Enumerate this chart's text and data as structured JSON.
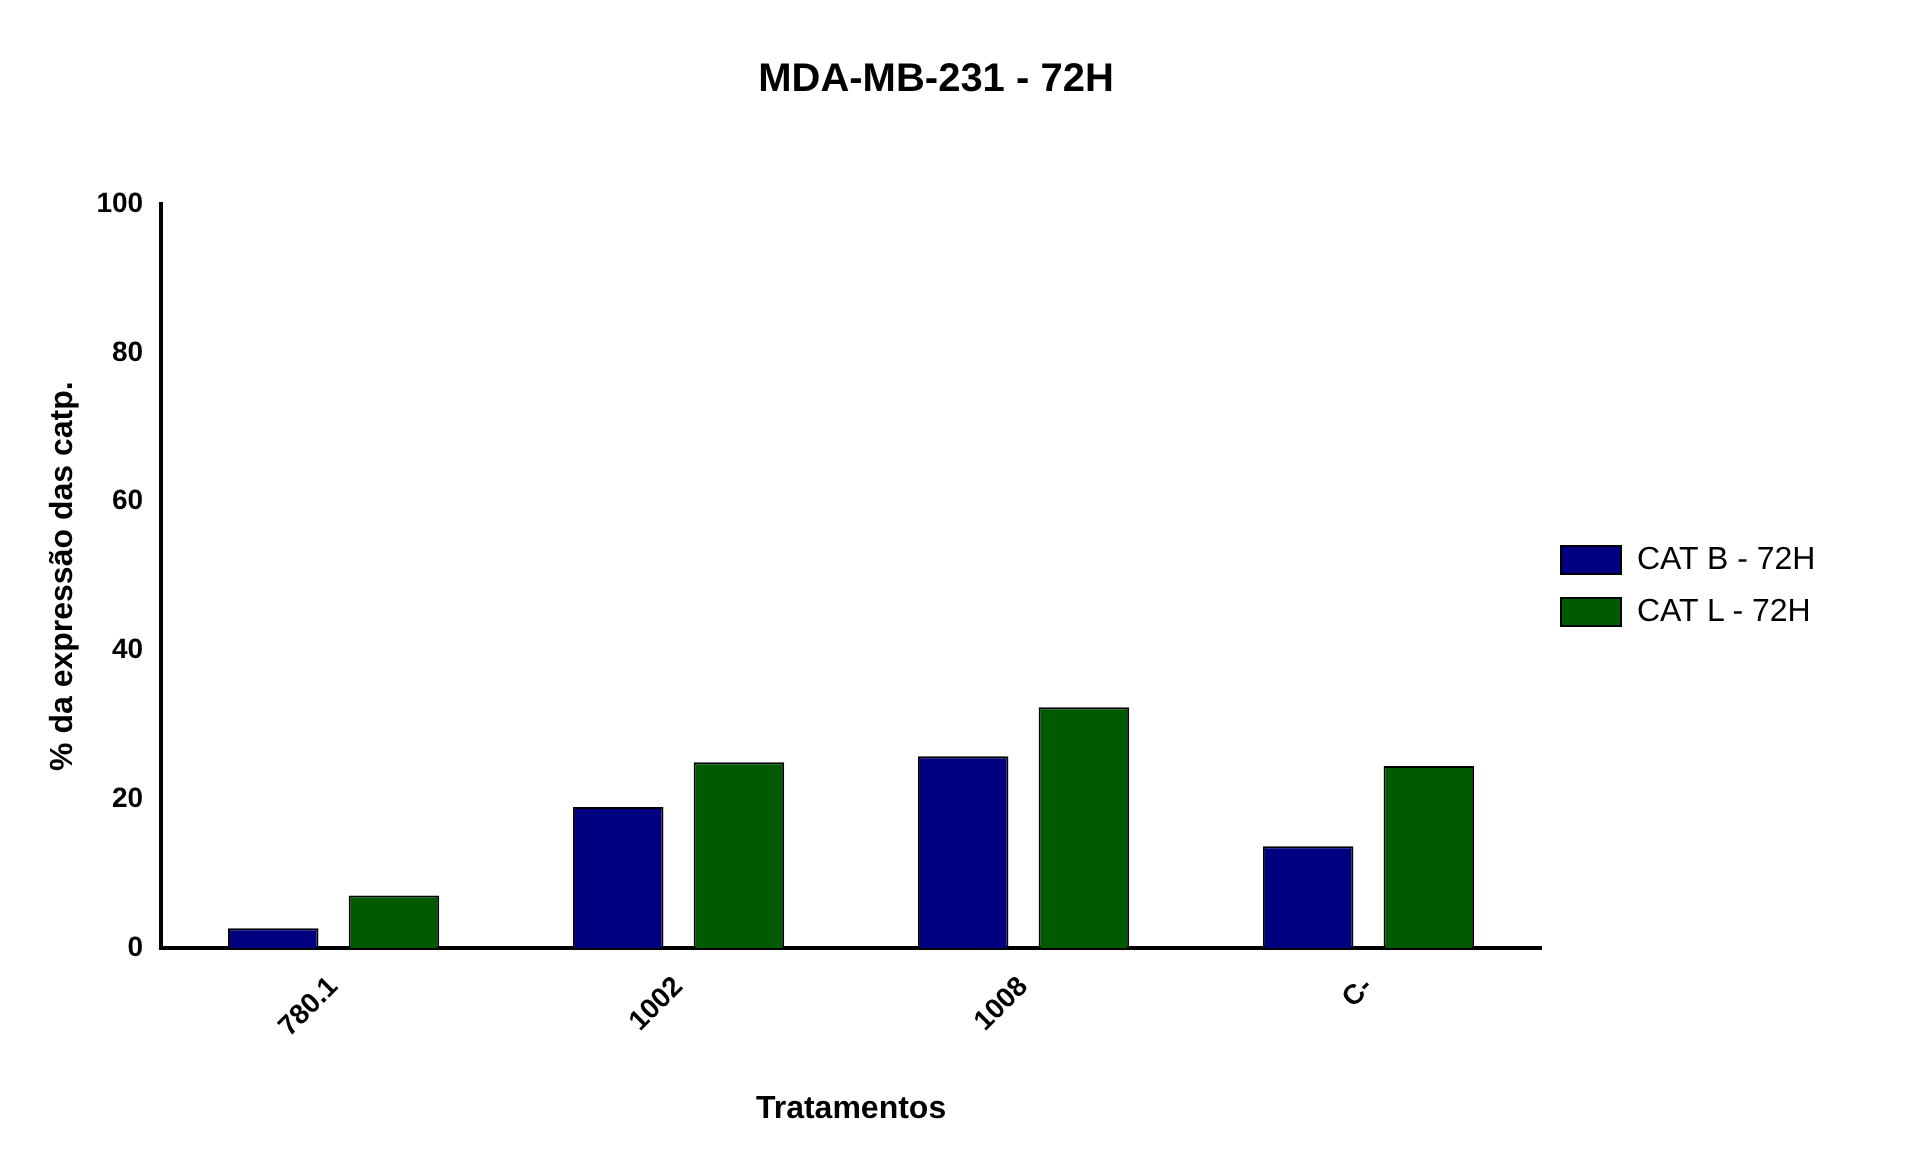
{
  "chart_data": {
    "type": "bar",
    "title": "MDA-MB-231 - 72H",
    "xlabel": "Tratamentos",
    "ylabel": "% da expressão das catp.",
    "categories": [
      "780.1",
      "1002",
      "1008",
      "C-"
    ],
    "series": [
      {
        "name": "CAT B - 72H",
        "color": "#000080",
        "values": [
          2.7,
          19,
          25.8,
          13.7
        ]
      },
      {
        "name": "CAT L - 72H",
        "color": "#005a00",
        "values": [
          7.1,
          25,
          32.4,
          24.5
        ]
      }
    ],
    "ylim": [
      0,
      100
    ],
    "yticks": [
      0,
      20,
      40,
      60,
      80,
      100
    ],
    "grid": false,
    "legend": "right"
  }
}
